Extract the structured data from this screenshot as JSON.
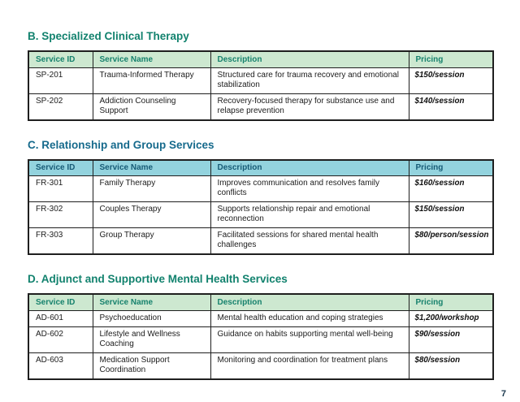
{
  "page_number": "7",
  "colors": {
    "green_title": "#12826e",
    "blue_title": "#166a8c",
    "green_header_bg": "#cde8d0",
    "green_header_text": "#17826d",
    "blue_header_bg": "#93d3de",
    "blue_header_text": "#175b76",
    "border": "#1f1f1f",
    "body_text": "#1c1c1c",
    "page_number_color": "#1d3a4f"
  },
  "columns": [
    "Service ID",
    "Service Name",
    "Description",
    "Pricing"
  ],
  "sections": [
    {
      "title": "B. Specialized Clinical Therapy",
      "theme": "green",
      "rows": [
        {
          "id": "SP-201",
          "name": "Trauma-Informed Therapy",
          "desc": "Structured care for trauma recovery and emotional stabilization",
          "price": "$150/session"
        },
        {
          "id": "SP-202",
          "name": "Addiction Counseling Support",
          "desc": "Recovery-focused therapy for substance use and relapse prevention",
          "price": "$140/session"
        }
      ]
    },
    {
      "title": "C. Relationship and Group Services",
      "theme": "blue",
      "rows": [
        {
          "id": "FR-301",
          "name": "Family Therapy",
          "desc": "Improves communication and resolves family conflicts",
          "price": "$160/session"
        },
        {
          "id": "FR-302",
          "name": "Couples Therapy",
          "desc": "Supports relationship repair and emotional reconnection",
          "price": "$150/session"
        },
        {
          "id": "FR-303",
          "name": "Group Therapy",
          "desc": "Facilitated sessions for shared mental health challenges",
          "price": "$80/person/session"
        }
      ]
    },
    {
      "title": "D. Adjunct and Supportive Mental Health Services",
      "theme": "green",
      "rows": [
        {
          "id": "AD-601",
          "name": "Psychoeducation",
          "desc": "Mental health education and coping strategies",
          "price": "$1,200/workshop"
        },
        {
          "id": "AD-602",
          "name": "Lifestyle and Wellness Coaching",
          "desc": "Guidance on habits supporting mental well-being",
          "price": "$90/session"
        },
        {
          "id": "AD-603",
          "name": "Medication Support Coordination",
          "desc": "Monitoring and coordination for treatment plans",
          "price": "$80/session"
        }
      ]
    }
  ]
}
